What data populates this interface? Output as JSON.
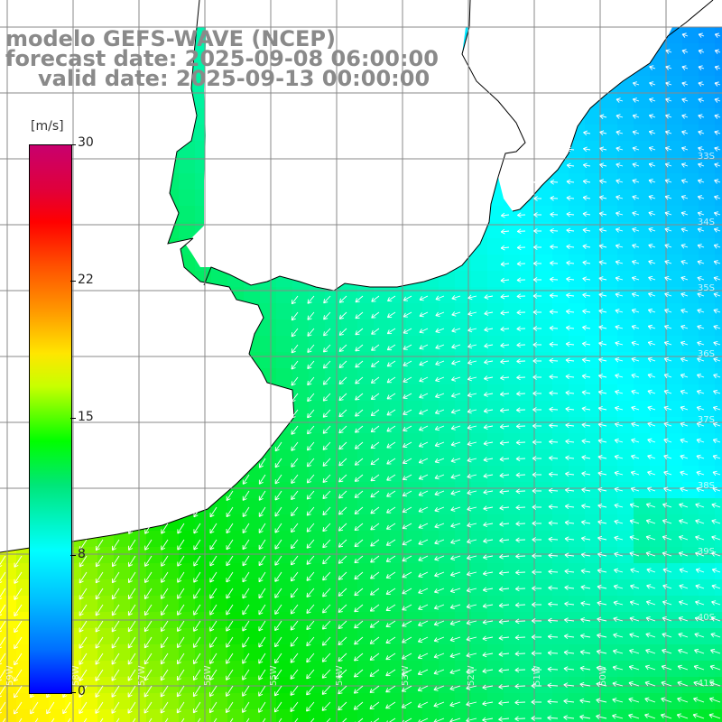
{
  "title": {
    "model": "modelo GEFS-WAVE (NCEP)",
    "forecast": "forecast date: 2025-09-08 06:00:00",
    "valid": "valid date: 2025-09-13 00:00:00"
  },
  "colorbar": {
    "unit": "[m/s]",
    "ticks": [
      "30",
      "22",
      "15",
      "8",
      "0"
    ],
    "colors": [
      "#0000ff",
      "#00bfff",
      "#00ffff",
      "#00ff00",
      "#ffff00",
      "#ff8000",
      "#ff0000",
      "#c8006e"
    ]
  },
  "map_style": {
    "land_color": "#ffffff",
    "coast_color": "#000000",
    "grid_color": "#888888",
    "arrow_color": "#ffffff",
    "label_color": "#ffffff"
  },
  "lat_labels": [
    "33S",
    "34S",
    "35S",
    "36S",
    "37S",
    "38S",
    "39S",
    "40S",
    "41S"
  ],
  "lon_labels": [
    "59W",
    "58W",
    "57W",
    "56W",
    "55W",
    "54W",
    "53W",
    "52W",
    "51W",
    "50W"
  ]
}
